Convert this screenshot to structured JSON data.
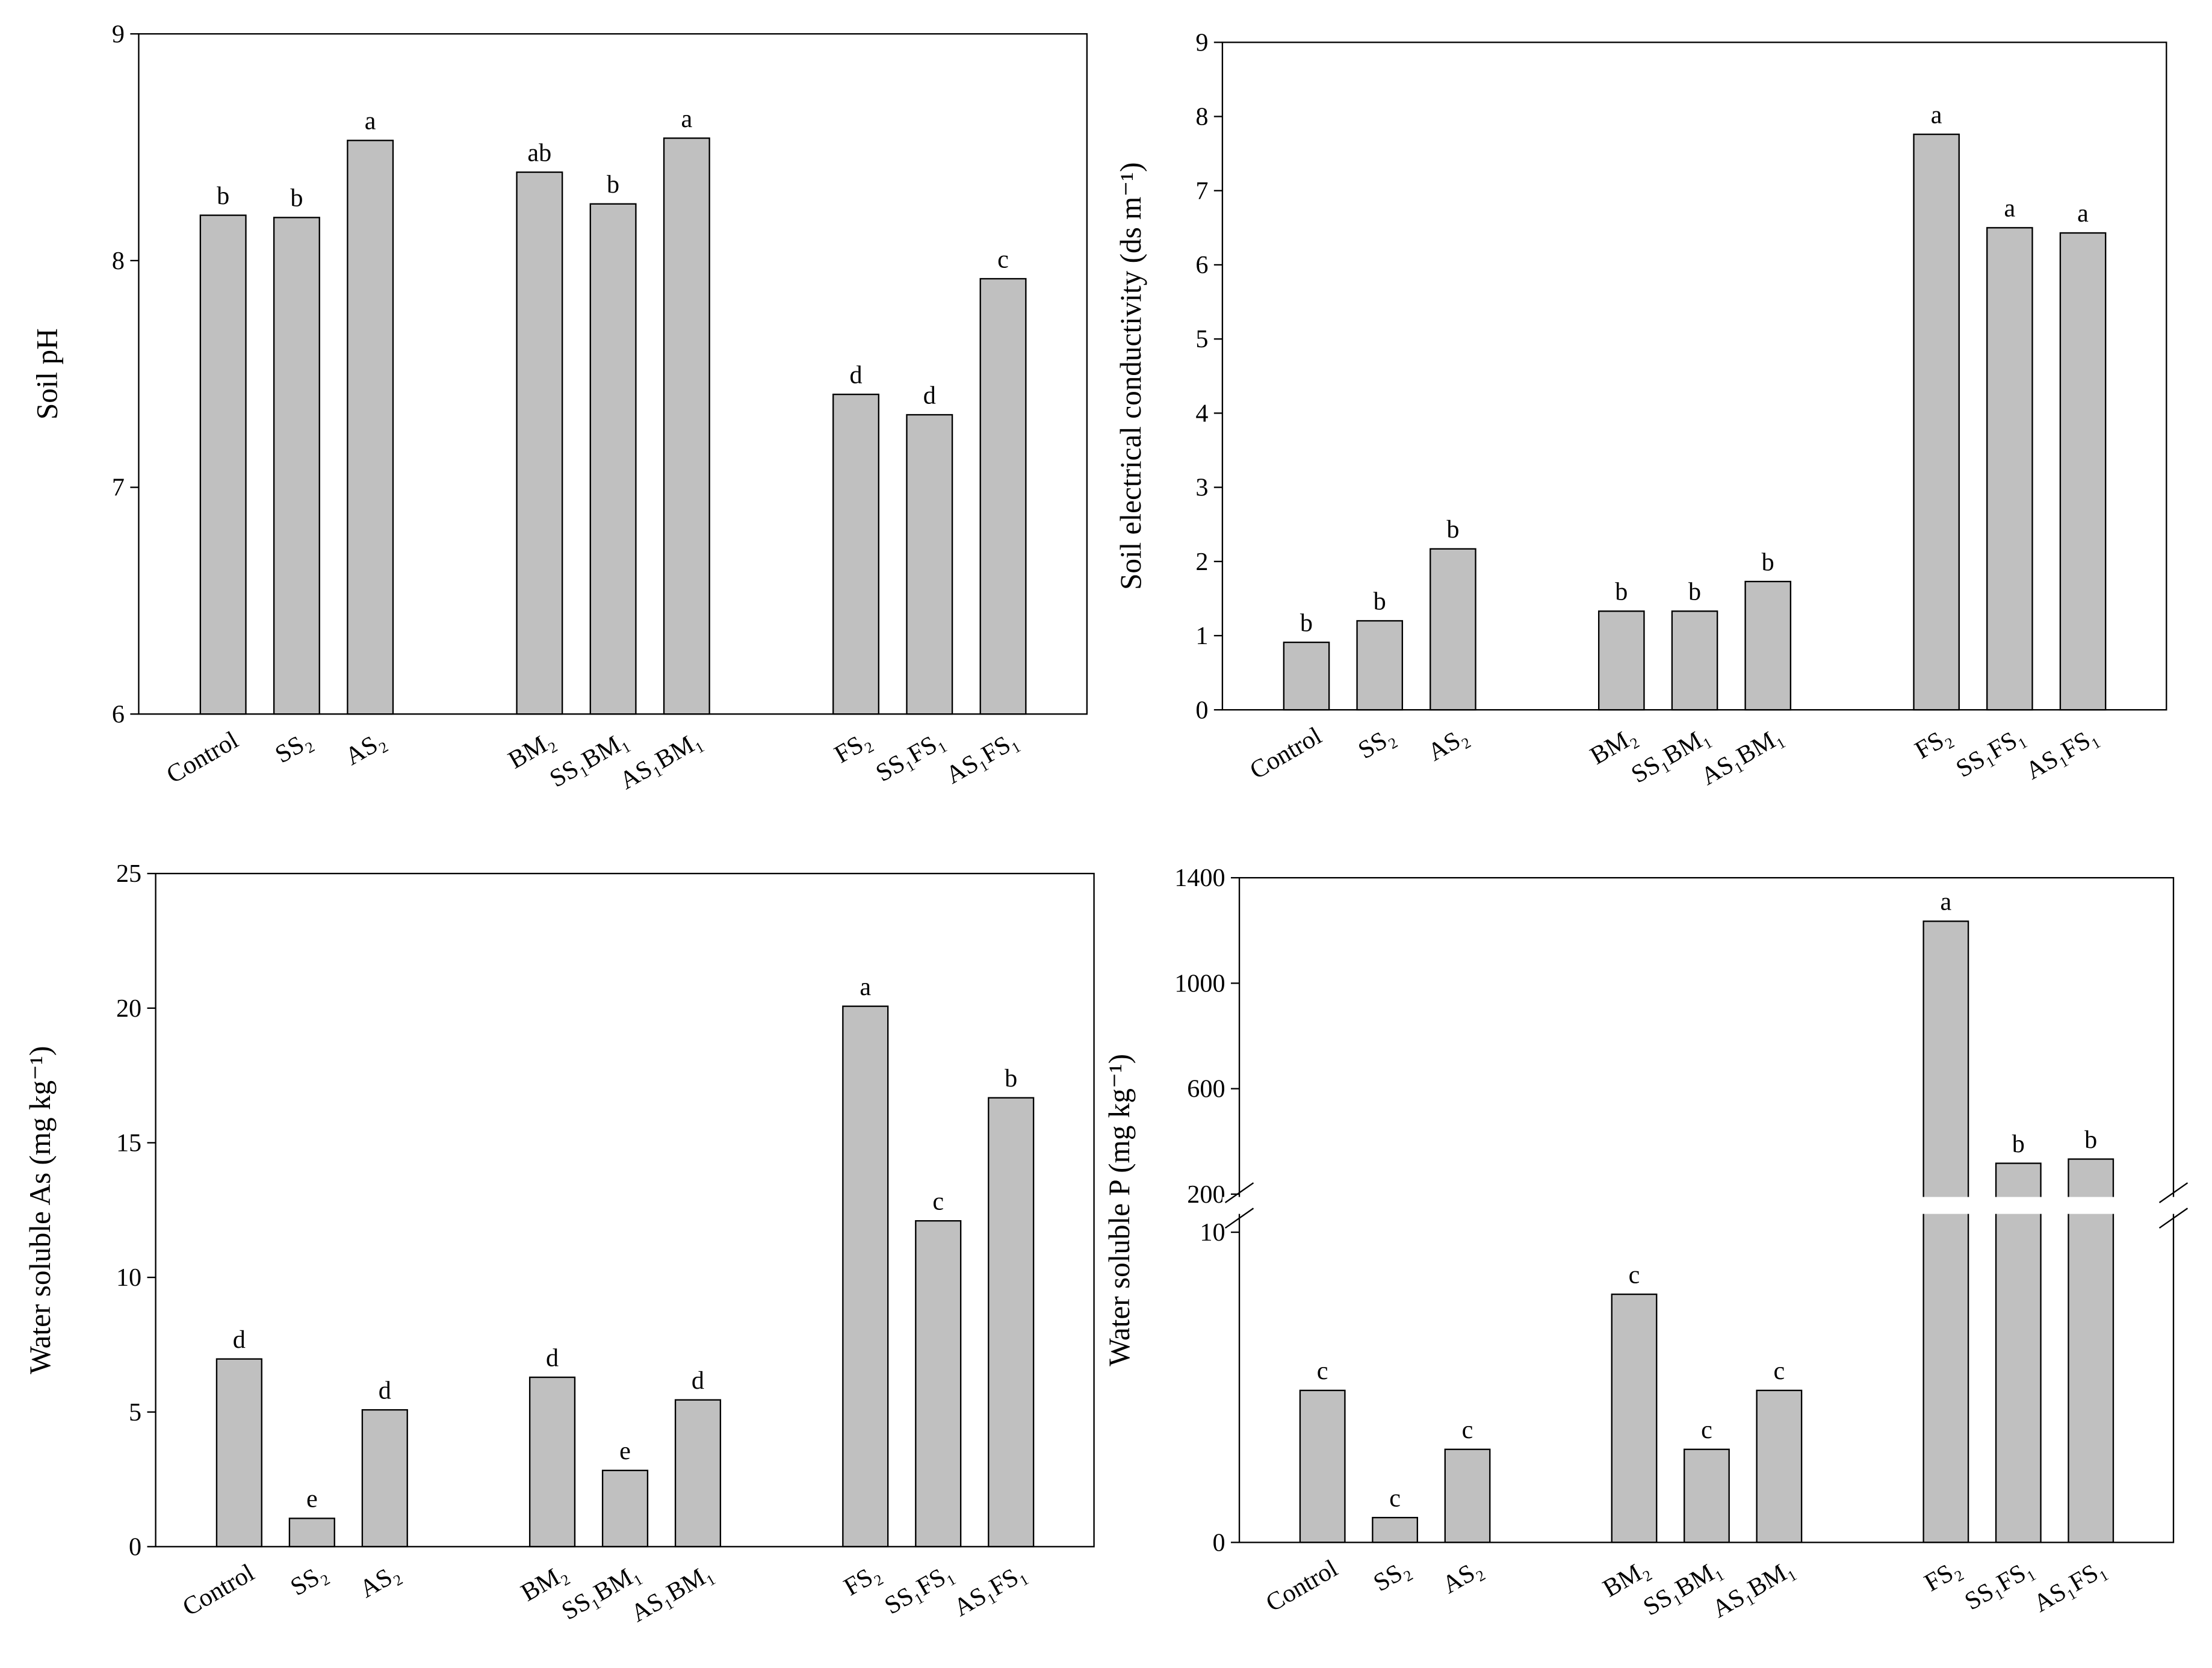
{
  "chart_data": [
    {
      "type": "bar",
      "y_label": "Soil pH",
      "color": "#c0c0c0",
      "categories": [
        "Control",
        "SS₂",
        "AS₂",
        "BM₂",
        "SS₁BM₁",
        "AS₁BM₁",
        "FS₂",
        "SS₁FS₁",
        "AS₁FS₁"
      ],
      "values": [
        8.2,
        8.19,
        8.53,
        8.39,
        8.25,
        8.54,
        7.41,
        7.32,
        7.92
      ],
      "letters": [
        "b",
        "b",
        "a",
        "ab",
        "b",
        "a",
        "d",
        "d",
        "c"
      ],
      "ylim": [
        6,
        9
      ],
      "yticks": [
        6,
        7,
        8,
        9
      ]
    },
    {
      "type": "bar",
      "y_label": "Soil electrical conductivity (ds m⁻¹)",
      "color": "#c0c0c0",
      "categories": [
        "Control",
        "SS₂",
        "AS₂",
        "BM₂",
        "SS₁BM₁",
        "AS₁BM₁",
        "FS₂",
        "SS₁FS₁",
        "AS₁FS₁"
      ],
      "values": [
        0.91,
        1.2,
        2.17,
        1.33,
        1.33,
        1.73,
        7.76,
        6.5,
        6.43
      ],
      "letters": [
        "b",
        "b",
        "b",
        "b",
        "b",
        "b",
        "a",
        "a",
        "a"
      ],
      "ylim": [
        0,
        9
      ],
      "yticks": [
        0,
        1,
        2,
        3,
        4,
        5,
        6,
        7,
        8,
        9
      ]
    },
    {
      "type": "bar",
      "y_label": "Water soluble As (mg kg⁻¹)",
      "color": "#c0c0c0",
      "categories": [
        "Control",
        "SS₂",
        "AS₂",
        "BM₂",
        "SS₁BM₁",
        "AS₁BM₁",
        "FS₂",
        "SS₁FS₁",
        "AS₁FS₁"
      ],
      "values": [
        6.97,
        1.05,
        5.08,
        6.29,
        2.83,
        5.45,
        20.07,
        12.1,
        16.67
      ],
      "letters": [
        "d",
        "e",
        "d",
        "d",
        "e",
        "d",
        "a",
        "c",
        "b"
      ],
      "ylim": [
        0,
        25
      ],
      "yticks": [
        0,
        5,
        10,
        15,
        20,
        25
      ]
    },
    {
      "type": "bar",
      "y_label": "Water soluble P (mg kg⁻¹)",
      "color": "#c0c0c0",
      "categories": [
        "Control",
        "SS₂",
        "AS₂",
        "BM₂",
        "SS₁BM₁",
        "AS₁BM₁",
        "FS₂",
        "SS₁FS₁",
        "AS₁FS₁"
      ],
      "values": [
        4.9,
        0.8,
        3.0,
        8.0,
        3.0,
        4.9,
        1235,
        317,
        333
      ],
      "letters": [
        "c",
        "c",
        "c",
        "c",
        "c",
        "c",
        "a",
        "b",
        "b"
      ],
      "ylim": [
        0,
        1400
      ],
      "ybreak": [
        10.5,
        200
      ],
      "yticks": [
        0,
        10,
        200,
        600,
        1000,
        1400
      ]
    }
  ]
}
